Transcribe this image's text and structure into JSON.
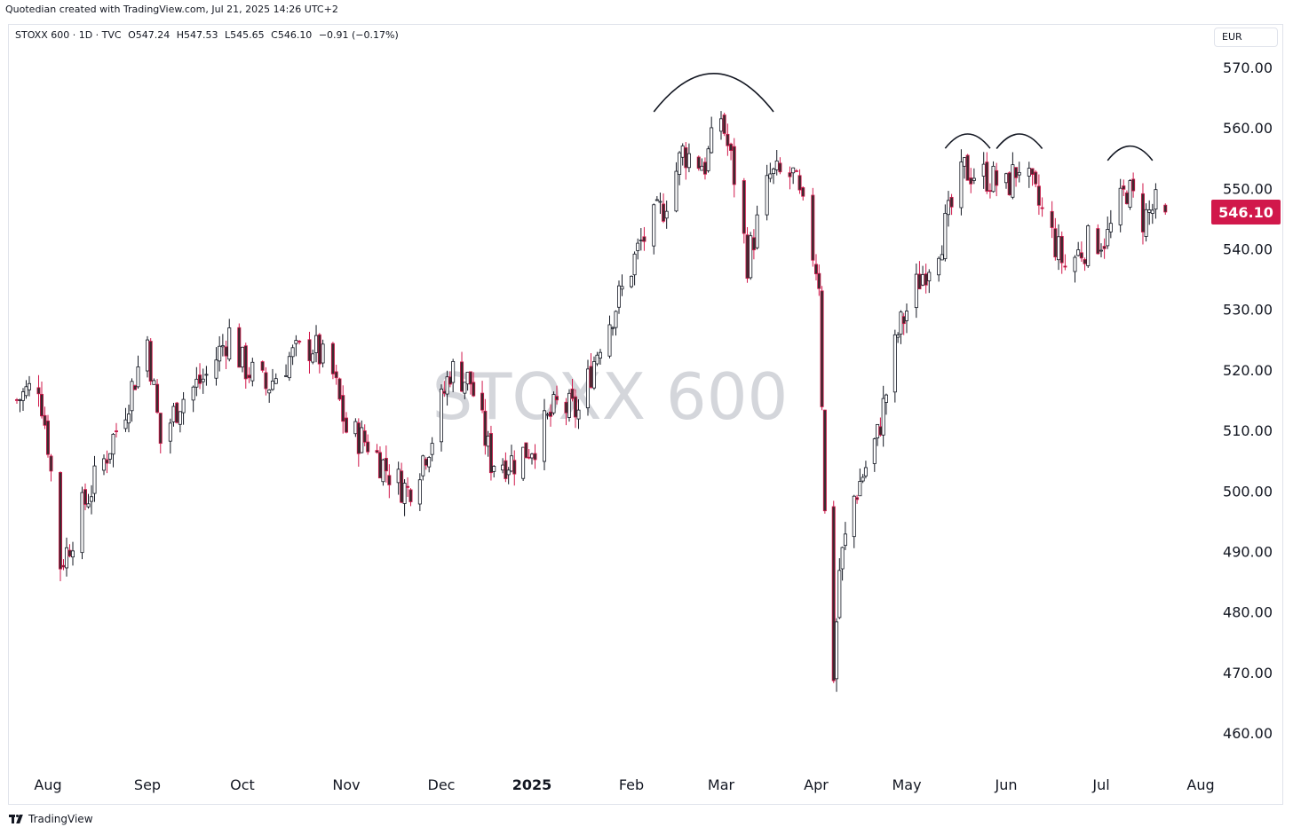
{
  "header": {
    "credit": "Quotedian created with TradingView.com, Jul 21, 2025 14:26 UTC+2"
  },
  "legend": {
    "symbol": "STOXX 600 · 1D · TVC",
    "open": "O547.24",
    "high": "H547.53",
    "low": "L545.65",
    "close": "C546.10",
    "change": "−0.91 (−0.17%)"
  },
  "currency": "EUR",
  "watermark": "STOXX 600",
  "last_price_label": "546.10",
  "footer": {
    "brand": "TradingView"
  },
  "colors": {
    "up": "#131722",
    "down": "#d1184b",
    "price_tag": "#d1184b",
    "grid": "#ffffff"
  },
  "chart_data": {
    "type": "candlestick",
    "title": "",
    "xlabel": "",
    "ylabel": "",
    "ylim": [
      455,
      573
    ],
    "y_ticks": [
      570,
      560,
      550,
      540,
      530,
      520,
      510,
      500,
      490,
      480,
      470,
      460
    ],
    "y_tick_labels": [
      "570.00",
      "560.00",
      "550.00",
      "540.00",
      "530.00",
      "520.00",
      "510.00",
      "500.00",
      "490.00",
      "480.00",
      "470.00",
      "460.00"
    ],
    "x_ticks": [
      {
        "label": "Aug",
        "date": "2024-08-01",
        "bold": false
      },
      {
        "label": "Sep",
        "date": "2024-09-02",
        "bold": false
      },
      {
        "label": "Oct",
        "date": "2024-10-01",
        "bold": false
      },
      {
        "label": "Nov",
        "date": "2024-11-01",
        "bold": false
      },
      {
        "label": "Dec",
        "date": "2024-12-02",
        "bold": false
      },
      {
        "label": "2025",
        "date": "2025-01-02",
        "bold": true
      },
      {
        "label": "Feb",
        "date": "2025-02-03",
        "bold": false
      },
      {
        "label": "Mar",
        "date": "2025-03-03",
        "bold": false
      },
      {
        "label": "Apr",
        "date": "2025-04-01",
        "bold": false
      },
      {
        "label": "May",
        "date": "2025-05-02",
        "bold": false
      },
      {
        "label": "Jun",
        "date": "2025-06-02",
        "bold": false
      },
      {
        "label": "Jul",
        "date": "2025-07-01",
        "bold": false
      },
      {
        "label": "Aug",
        "date": "2025-08-01",
        "bold": false
      }
    ],
    "close_series": [
      {
        "date": "2024-07-22",
        "close": 515
      },
      {
        "date": "2024-07-29",
        "close": 518
      },
      {
        "date": "2024-08-01",
        "close": 508
      },
      {
        "date": "2024-08-05",
        "close": 488
      },
      {
        "date": "2024-08-07",
        "close": 490
      },
      {
        "date": "2024-08-12",
        "close": 497
      },
      {
        "date": "2024-08-19",
        "close": 505
      },
      {
        "date": "2024-08-26",
        "close": 514
      },
      {
        "date": "2024-09-02",
        "close": 525
      },
      {
        "date": "2024-09-06",
        "close": 508
      },
      {
        "date": "2024-09-12",
        "close": 515
      },
      {
        "date": "2024-09-20",
        "close": 519
      },
      {
        "date": "2024-09-27",
        "close": 526
      },
      {
        "date": "2024-10-01",
        "close": 521
      },
      {
        "date": "2024-10-08",
        "close": 517
      },
      {
        "date": "2024-10-15",
        "close": 522
      },
      {
        "date": "2024-10-22",
        "close": 524
      },
      {
        "date": "2024-10-28",
        "close": 519
      },
      {
        "date": "2024-11-01",
        "close": 510
      },
      {
        "date": "2024-11-08",
        "close": 508
      },
      {
        "date": "2024-11-15",
        "close": 503
      },
      {
        "date": "2024-11-21",
        "close": 500
      },
      {
        "date": "2024-11-29",
        "close": 509
      },
      {
        "date": "2024-12-05",
        "close": 520
      },
      {
        "date": "2024-12-12",
        "close": 518
      },
      {
        "date": "2024-12-19",
        "close": 505
      },
      {
        "date": "2024-12-27",
        "close": 505
      },
      {
        "date": "2025-01-03",
        "close": 508
      },
      {
        "date": "2025-01-10",
        "close": 514
      },
      {
        "date": "2025-01-17",
        "close": 513
      },
      {
        "date": "2025-01-24",
        "close": 525
      },
      {
        "date": "2025-01-31",
        "close": 533
      },
      {
        "date": "2025-02-06",
        "close": 541
      },
      {
        "date": "2025-02-13",
        "close": 547
      },
      {
        "date": "2025-02-19",
        "close": 556
      },
      {
        "date": "2025-02-26",
        "close": 554
      },
      {
        "date": "2025-03-03",
        "close": 562
      },
      {
        "date": "2025-03-07",
        "close": 552
      },
      {
        "date": "2025-03-11",
        "close": 538
      },
      {
        "date": "2025-03-18",
        "close": 552
      },
      {
        "date": "2025-03-25",
        "close": 552
      },
      {
        "date": "2025-03-28",
        "close": 546
      },
      {
        "date": "2025-04-02",
        "close": 535
      },
      {
        "date": "2025-04-04",
        "close": 496
      },
      {
        "date": "2025-04-07",
        "close": 470
      },
      {
        "date": "2025-04-09",
        "close": 487
      },
      {
        "date": "2025-04-14",
        "close": 499
      },
      {
        "date": "2025-04-22",
        "close": 509
      },
      {
        "date": "2025-04-29",
        "close": 526
      },
      {
        "date": "2025-05-06",
        "close": 535
      },
      {
        "date": "2025-05-13",
        "close": 542
      },
      {
        "date": "2025-05-20",
        "close": 553
      },
      {
        "date": "2025-05-27",
        "close": 552
      },
      {
        "date": "2025-06-02",
        "close": 550
      },
      {
        "date": "2025-06-06",
        "close": 554
      },
      {
        "date": "2025-06-13",
        "close": 546
      },
      {
        "date": "2025-06-20",
        "close": 537
      },
      {
        "date": "2025-06-27",
        "close": 541
      },
      {
        "date": "2025-07-03",
        "close": 542
      },
      {
        "date": "2025-07-09",
        "close": 550
      },
      {
        "date": "2025-07-14",
        "close": 545
      },
      {
        "date": "2025-07-18",
        "close": 547
      },
      {
        "date": "2025-07-21",
        "close": 546.1
      }
    ],
    "annotations": [
      {
        "type": "arc",
        "from": "2025-02-10",
        "to": "2025-03-19",
        "top": 569
      },
      {
        "type": "arc",
        "from": "2025-05-14",
        "to": "2025-05-28",
        "top": 559
      },
      {
        "type": "arc",
        "from": "2025-05-30",
        "to": "2025-06-13",
        "top": 559
      },
      {
        "type": "arc",
        "from": "2025-07-03",
        "to": "2025-07-17",
        "top": 557
      }
    ]
  }
}
